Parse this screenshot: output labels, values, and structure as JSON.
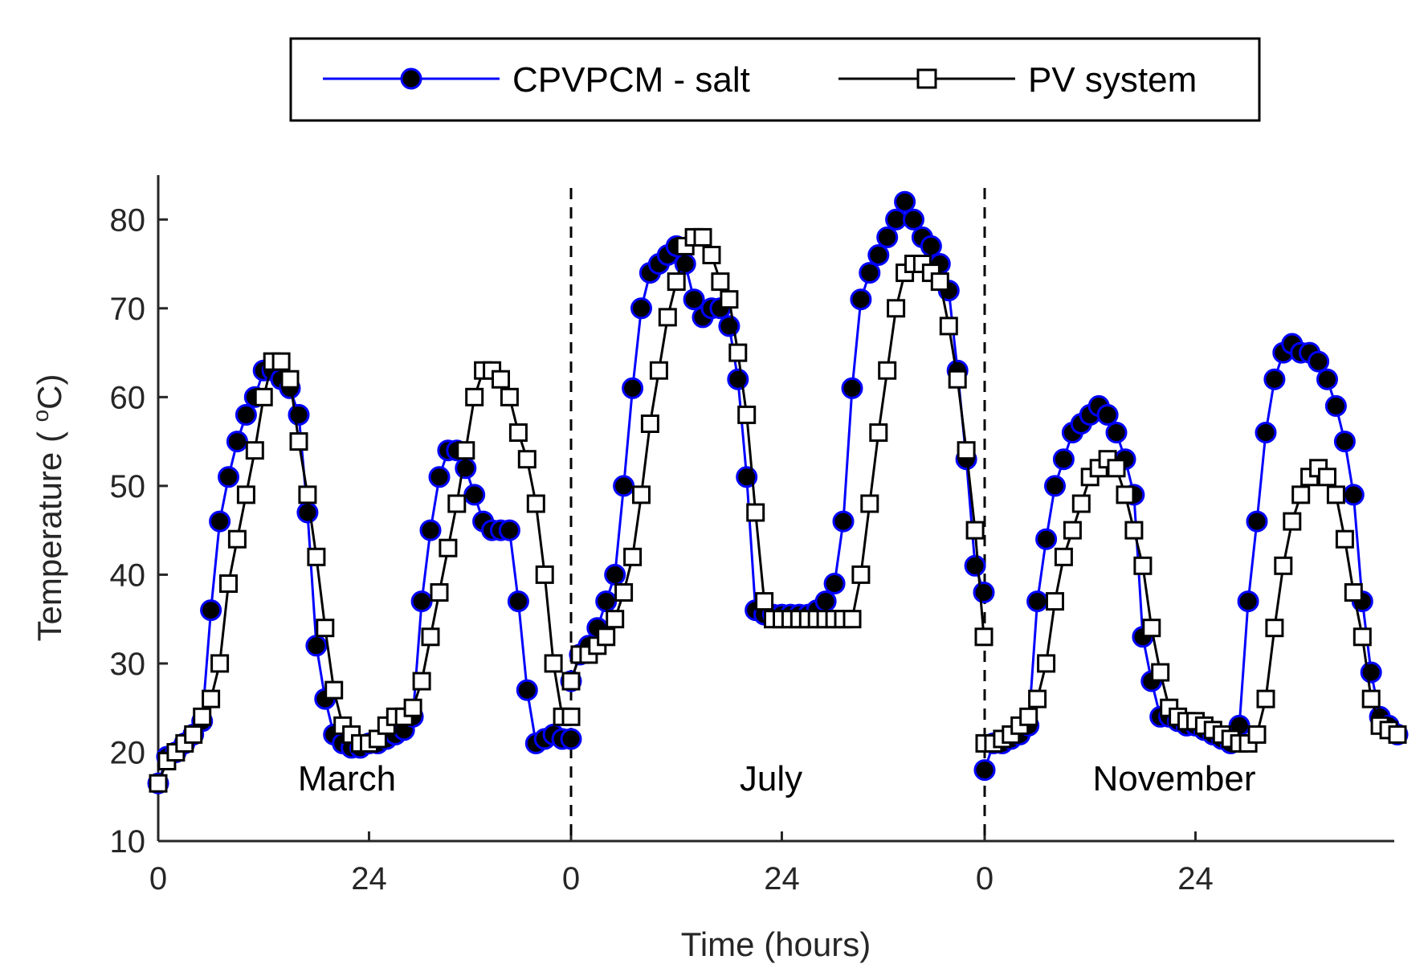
{
  "chart_data": {
    "type": "line",
    "title": "",
    "xlabel": "Time (hours)",
    "ylabel_main": "Temperature ( ",
    "ylabel_sup": "o",
    "ylabel_unit": "C)",
    "ylim": [
      10,
      85
    ],
    "yticks": [
      "10",
      "20",
      "30",
      "40",
      "50",
      "60",
      "70",
      "80"
    ],
    "xticks": [
      "0",
      "24",
      "0",
      "24",
      "0",
      "24"
    ],
    "segment_hours": 47,
    "panels": [
      "March",
      "July",
      "November"
    ],
    "legend": [
      {
        "name": "CPVPCM - salt",
        "marker": "filled-circle",
        "color": "#0000ff"
      },
      {
        "name": "PV system",
        "marker": "open-square",
        "color": "#000000"
      }
    ],
    "colors": {
      "cpvpcm": "#0000ff",
      "marker_fill": "#000000",
      "pv": "#000000",
      "axis": "#262626"
    },
    "series": [
      {
        "name": "CPVPCM - salt",
        "segments": [
          [
            [
              0,
              16.5
            ],
            [
              1,
              19.5
            ],
            [
              2,
              20
            ],
            [
              3,
              21
            ],
            [
              4,
              22
            ],
            [
              5,
              23.5
            ],
            [
              6,
              36
            ],
            [
              7,
              46
            ],
            [
              8,
              51
            ],
            [
              9,
              55
            ],
            [
              10,
              58
            ],
            [
              11,
              60
            ],
            [
              12,
              63
            ],
            [
              13,
              63
            ],
            [
              14,
              62
            ],
            [
              15,
              61
            ],
            [
              16,
              58
            ],
            [
              17,
              47
            ],
            [
              18,
              32
            ],
            [
              19,
              26
            ],
            [
              20,
              22
            ],
            [
              21,
              21
            ],
            [
              22,
              20.5
            ],
            [
              23,
              20.5
            ],
            [
              24,
              21
            ],
            [
              25,
              21
            ],
            [
              26,
              21.5
            ],
            [
              27,
              22
            ],
            [
              28,
              22.5
            ],
            [
              29,
              24
            ],
            [
              30,
              37
            ],
            [
              31,
              45
            ],
            [
              32,
              51
            ],
            [
              33,
              54
            ],
            [
              34,
              54
            ],
            [
              35,
              52
            ],
            [
              36,
              49
            ],
            [
              37,
              46
            ],
            [
              38,
              45
            ],
            [
              39,
              45
            ],
            [
              40,
              45
            ],
            [
              41,
              37
            ],
            [
              42,
              27
            ],
            [
              43,
              21
            ],
            [
              44,
              21.5
            ],
            [
              45,
              22
            ],
            [
              46,
              21.5
            ],
            [
              47,
              21.5
            ]
          ],
          [
            [
              0,
              28
            ],
            [
              1,
              31
            ],
            [
              2,
              32
            ],
            [
              3,
              34
            ],
            [
              4,
              37
            ],
            [
              5,
              40
            ],
            [
              6,
              50
            ],
            [
              7,
              61
            ],
            [
              8,
              70
            ],
            [
              9,
              74
            ],
            [
              10,
              75
            ],
            [
              11,
              76
            ],
            [
              12,
              77
            ],
            [
              13,
              75
            ],
            [
              14,
              71
            ],
            [
              15,
              69
            ],
            [
              16,
              70
            ],
            [
              17,
              70
            ],
            [
              18,
              68
            ],
            [
              19,
              62
            ],
            [
              20,
              51
            ],
            [
              21,
              36
            ],
            [
              22,
              35.5
            ],
            [
              23,
              35.5
            ],
            [
              24,
              35.5
            ],
            [
              25,
              35.5
            ],
            [
              26,
              35.5
            ],
            [
              27,
              35.5
            ],
            [
              28,
              36
            ],
            [
              29,
              37
            ],
            [
              30,
              39
            ],
            [
              31,
              46
            ],
            [
              32,
              61
            ],
            [
              33,
              71
            ],
            [
              34,
              74
            ],
            [
              35,
              76
            ],
            [
              36,
              78
            ],
            [
              37,
              80
            ],
            [
              38,
              82
            ],
            [
              39,
              80
            ],
            [
              40,
              78
            ],
            [
              41,
              77
            ],
            [
              42,
              75
            ],
            [
              43,
              72
            ],
            [
              44,
              63
            ],
            [
              45,
              53
            ],
            [
              46,
              41
            ],
            [
              47,
              38
            ]
          ],
          [
            [
              0,
              18
            ],
            [
              1,
              21
            ],
            [
              2,
              21
            ],
            [
              3,
              21.5
            ],
            [
              4,
              22
            ],
            [
              5,
              23
            ],
            [
              6,
              37
            ],
            [
              7,
              44
            ],
            [
              8,
              50
            ],
            [
              9,
              53
            ],
            [
              10,
              56
            ],
            [
              11,
              57
            ],
            [
              12,
              58
            ],
            [
              13,
              59
            ],
            [
              14,
              58
            ],
            [
              15,
              56
            ],
            [
              16,
              53
            ],
            [
              17,
              49
            ],
            [
              18,
              33
            ],
            [
              19,
              28
            ],
            [
              20,
              24
            ],
            [
              21,
              24
            ],
            [
              22,
              23.5
            ],
            [
              23,
              23
            ],
            [
              24,
              23
            ],
            [
              25,
              22.5
            ],
            [
              26,
              22
            ],
            [
              27,
              21.5
            ],
            [
              28,
              21
            ],
            [
              29,
              23
            ],
            [
              30,
              37
            ],
            [
              31,
              46
            ],
            [
              32,
              56
            ],
            [
              33,
              62
            ],
            [
              34,
              65
            ],
            [
              35,
              66
            ],
            [
              36,
              65
            ],
            [
              37,
              65
            ],
            [
              38,
              64
            ],
            [
              39,
              62
            ],
            [
              40,
              59
            ],
            [
              41,
              55
            ],
            [
              42,
              49
            ],
            [
              43,
              37
            ],
            [
              44,
              29
            ],
            [
              45,
              24
            ],
            [
              46,
              23
            ],
            [
              47,
              22
            ]
          ]
        ]
      },
      {
        "name": "PV system",
        "segments": [
          [
            [
              0,
              16.5
            ],
            [
              1,
              19
            ],
            [
              2,
              20
            ],
            [
              3,
              21
            ],
            [
              4,
              22
            ],
            [
              5,
              24
            ],
            [
              6,
              26
            ],
            [
              7,
              30
            ],
            [
              8,
              39
            ],
            [
              9,
              44
            ],
            [
              10,
              49
            ],
            [
              11,
              54
            ],
            [
              12,
              60
            ],
            [
              13,
              64
            ],
            [
              14,
              64
            ],
            [
              15,
              62
            ],
            [
              16,
              55
            ],
            [
              17,
              49
            ],
            [
              18,
              42
            ],
            [
              19,
              34
            ],
            [
              20,
              27
            ],
            [
              21,
              23
            ],
            [
              22,
              22
            ],
            [
              23,
              21
            ],
            [
              24,
              21
            ],
            [
              25,
              21.5
            ],
            [
              26,
              23
            ],
            [
              27,
              24
            ],
            [
              28,
              24
            ],
            [
              29,
              25
            ],
            [
              30,
              28
            ],
            [
              31,
              33
            ],
            [
              32,
              38
            ],
            [
              33,
              43
            ],
            [
              34,
              48
            ],
            [
              35,
              54
            ],
            [
              36,
              60
            ],
            [
              37,
              63
            ],
            [
              38,
              63
            ],
            [
              39,
              62
            ],
            [
              40,
              60
            ],
            [
              41,
              56
            ],
            [
              42,
              53
            ],
            [
              43,
              48
            ],
            [
              44,
              40
            ],
            [
              45,
              30
            ],
            [
              46,
              24
            ],
            [
              47,
              24
            ]
          ],
          [
            [
              0,
              28
            ],
            [
              1,
              31
            ],
            [
              2,
              31
            ],
            [
              3,
              32
            ],
            [
              4,
              33
            ],
            [
              5,
              35
            ],
            [
              6,
              38
            ],
            [
              7,
              42
            ],
            [
              8,
              49
            ],
            [
              9,
              57
            ],
            [
              10,
              63
            ],
            [
              11,
              69
            ],
            [
              12,
              73
            ],
            [
              13,
              77
            ],
            [
              14,
              78
            ],
            [
              15,
              78
            ],
            [
              16,
              76
            ],
            [
              17,
              73
            ],
            [
              18,
              71
            ],
            [
              19,
              65
            ],
            [
              20,
              58
            ],
            [
              21,
              47
            ],
            [
              22,
              37
            ],
            [
              23,
              35
            ],
            [
              24,
              35
            ],
            [
              25,
              35
            ],
            [
              26,
              35
            ],
            [
              27,
              35
            ],
            [
              28,
              35
            ],
            [
              29,
              35
            ],
            [
              30,
              35
            ],
            [
              31,
              35
            ],
            [
              32,
              35
            ],
            [
              33,
              40
            ],
            [
              34,
              48
            ],
            [
              35,
              56
            ],
            [
              36,
              63
            ],
            [
              37,
              70
            ],
            [
              38,
              74
            ],
            [
              39,
              75
            ],
            [
              40,
              75
            ],
            [
              41,
              74
            ],
            [
              42,
              73
            ],
            [
              43,
              68
            ],
            [
              44,
              62
            ],
            [
              45,
              54
            ],
            [
              46,
              45
            ],
            [
              47,
              33
            ]
          ],
          [
            [
              0,
              21
            ],
            [
              1,
              21
            ],
            [
              2,
              21.5
            ],
            [
              3,
              22
            ],
            [
              4,
              23
            ],
            [
              5,
              24
            ],
            [
              6,
              26
            ],
            [
              7,
              30
            ],
            [
              8,
              37
            ],
            [
              9,
              42
            ],
            [
              10,
              45
            ],
            [
              11,
              48
            ],
            [
              12,
              51
            ],
            [
              13,
              52
            ],
            [
              14,
              53
            ],
            [
              15,
              52
            ],
            [
              16,
              49
            ],
            [
              17,
              45
            ],
            [
              18,
              41
            ],
            [
              19,
              34
            ],
            [
              20,
              29
            ],
            [
              21,
              25
            ],
            [
              22,
              24
            ],
            [
              23,
              23.5
            ],
            [
              24,
              23.5
            ],
            [
              25,
              23
            ],
            [
              26,
              22.5
            ],
            [
              27,
              22
            ],
            [
              28,
              21.5
            ],
            [
              29,
              21
            ],
            [
              30,
              21
            ],
            [
              31,
              22
            ],
            [
              32,
              26
            ],
            [
              33,
              34
            ],
            [
              34,
              41
            ],
            [
              35,
              46
            ],
            [
              36,
              49
            ],
            [
              37,
              51
            ],
            [
              38,
              52
            ],
            [
              39,
              51
            ],
            [
              40,
              49
            ],
            [
              41,
              44
            ],
            [
              42,
              38
            ],
            [
              43,
              33
            ],
            [
              44,
              26
            ],
            [
              45,
              23
            ],
            [
              46,
              22.5
            ],
            [
              47,
              22
            ]
          ]
        ]
      }
    ]
  }
}
